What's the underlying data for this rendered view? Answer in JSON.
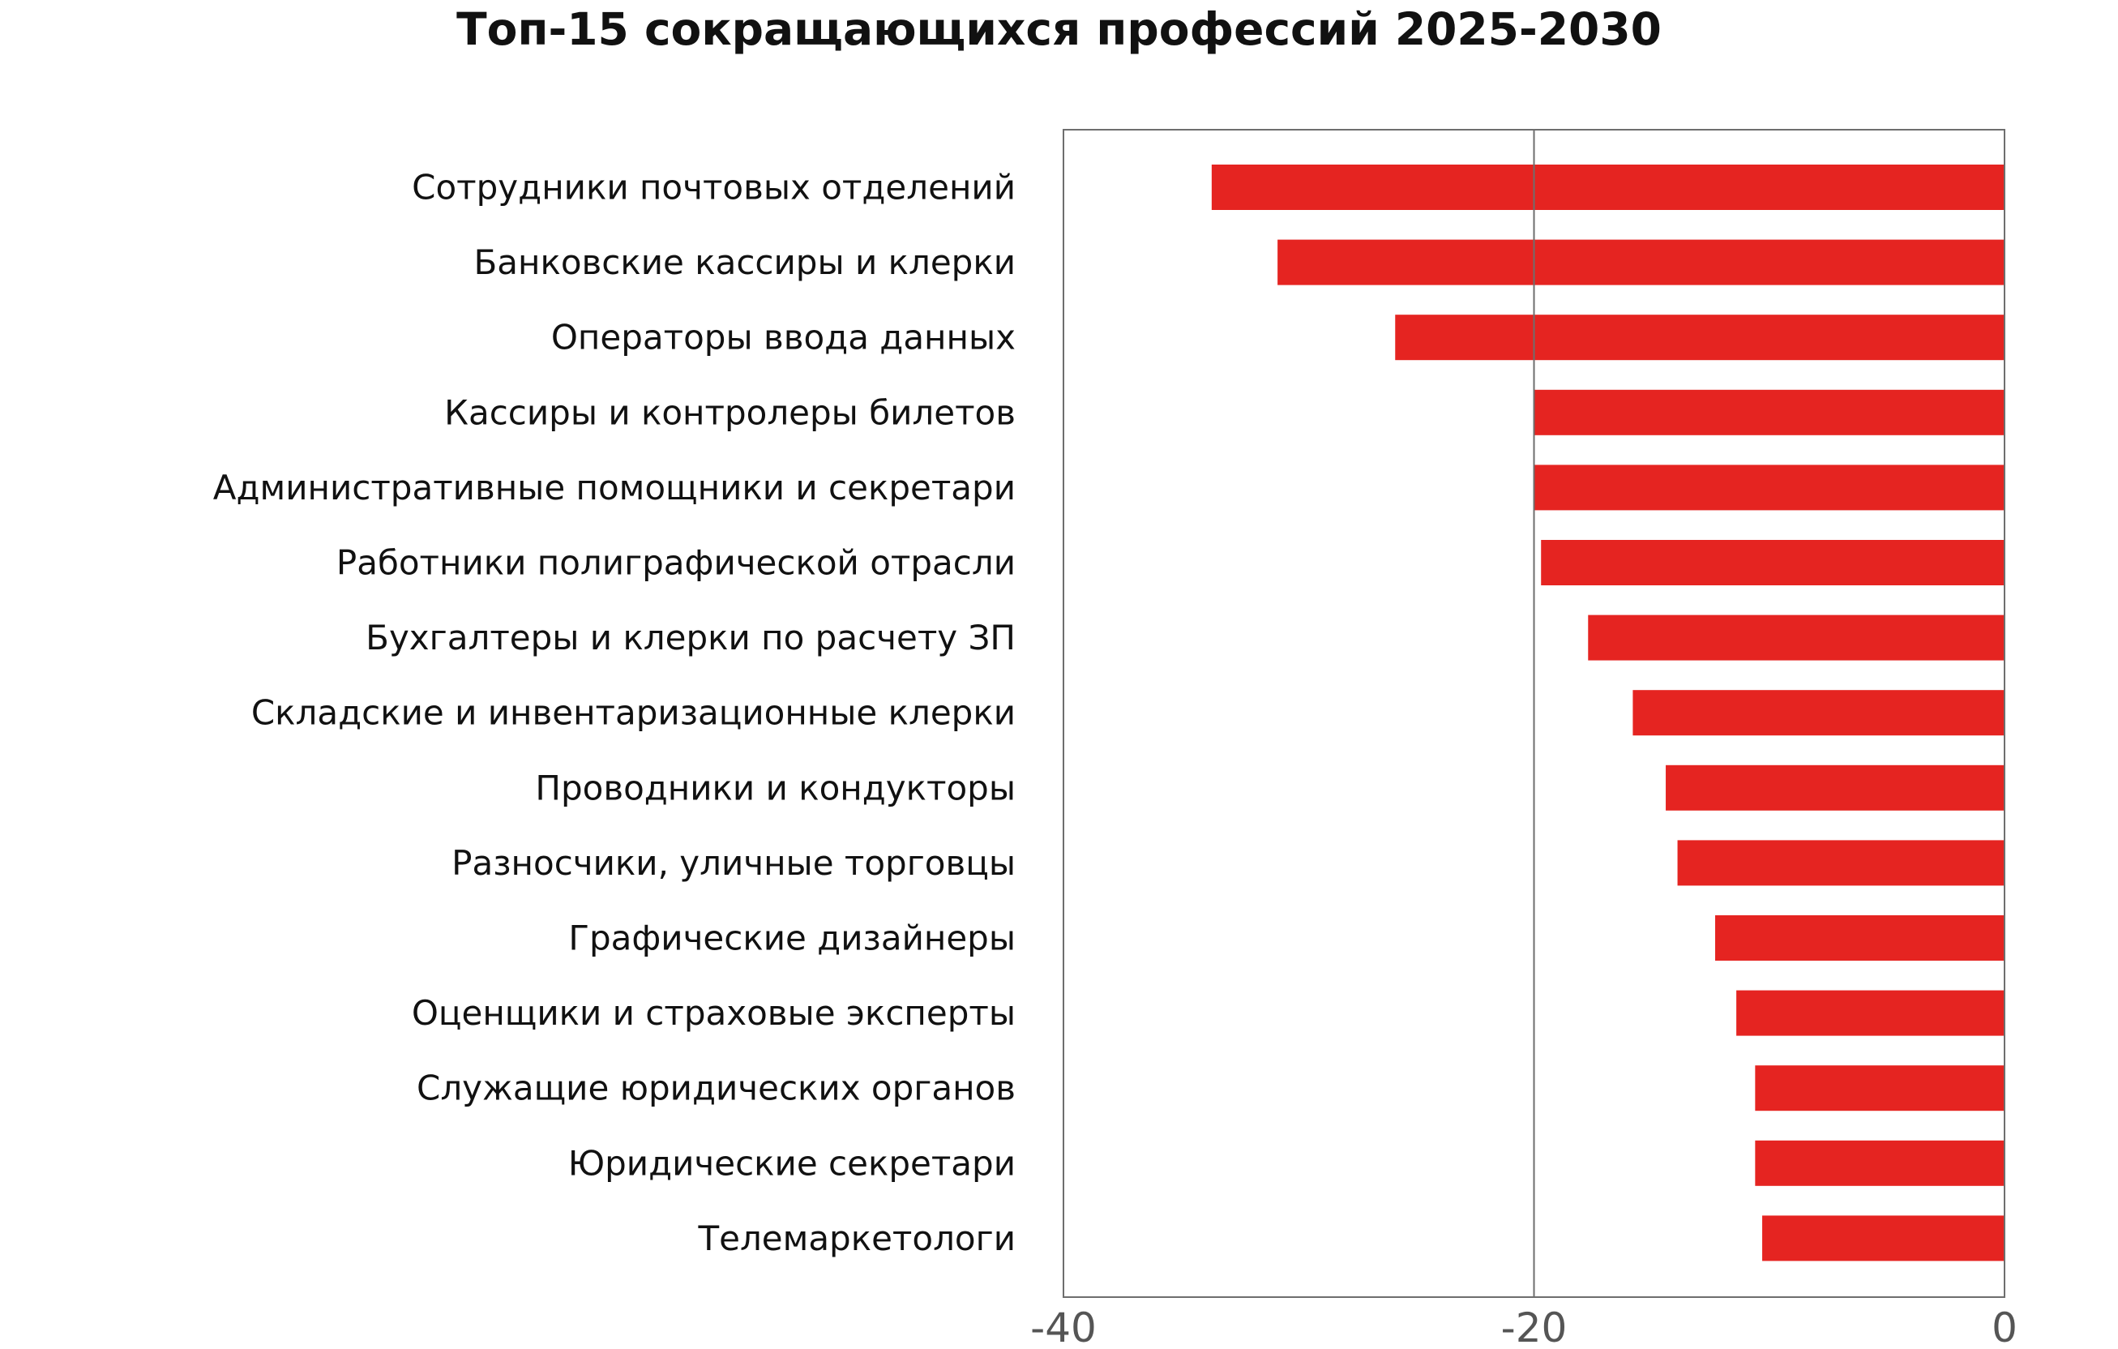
{
  "chart_data": {
    "type": "bar",
    "orientation": "horizontal",
    "title": "Топ-15 сокращающихся профессий 2025-2030",
    "xlabel": "",
    "ylabel": "",
    "categories": [
      "Сотрудники почтовых отделений",
      "Банковские кассиры и клерки",
      "Операторы ввода данных",
      "Кассиры и контролеры билетов",
      "Административные помощники и секретари",
      "Работники полиграфической отрасли",
      "Бухгалтеры и клерки по расчету ЗП",
      "Складские и инвентаризационные клерки",
      "Проводники и кондукторы",
      "Разносчики, уличные торговцы",
      "Графические дизайнеры",
      "Оценщики и страховые эксперты",
      "Служащие юридических органов",
      "Юридические секретари",
      "Телемаркетологи"
    ],
    "values": [
      -33.7,
      -30.9,
      -25.9,
      -20.0,
      -20.0,
      -19.7,
      -17.7,
      -15.8,
      -14.4,
      -13.9,
      -12.3,
      -11.4,
      -10.6,
      -10.6,
      -10.3
    ],
    "xlim": [
      -40,
      0
    ],
    "xticks": [
      "-40",
      "-20",
      "0"
    ],
    "xtick_values": [
      -40,
      -20,
      0
    ],
    "reference_line": -20,
    "bar_color": "#e52421",
    "grid": false,
    "legend": "none"
  }
}
